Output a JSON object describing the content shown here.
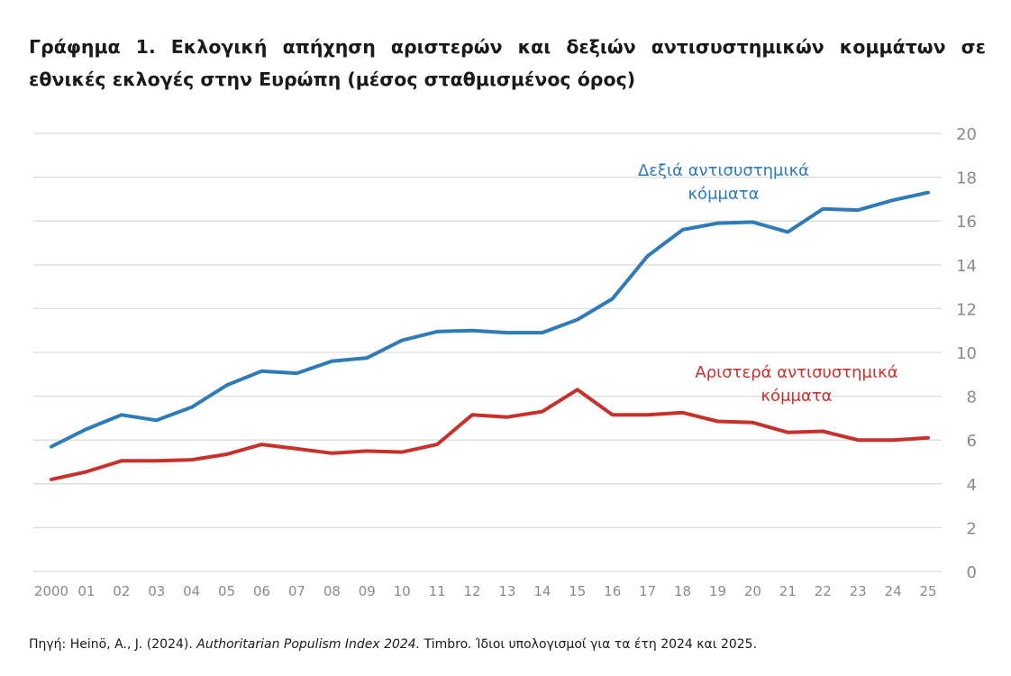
{
  "title": "Γράφημα 1. Εκλογική απήχηση αριστερών και δεξιών αντισυστημικών κομμάτων σε εθνικές εκλογές στην Ευρώπη (μέσος σταθμισμένος όρος)",
  "source": {
    "prefix": "Πηγή: Heinö, A., J. (2024). ",
    "italic": "Authoritarian Populism Index 2024.",
    "suffix": " Timbro. Ίδιοι υπολογισμοί για τα έτη 2024 και 2025."
  },
  "colors": {
    "right": "#2e7bb8",
    "left": "#c8302b",
    "grid": "#dcdcdc",
    "tick": "#8a8a8a"
  },
  "chart_data": {
    "type": "line",
    "categories": [
      "2000",
      "01",
      "02",
      "03",
      "04",
      "05",
      "06",
      "07",
      "08",
      "09",
      "10",
      "11",
      "12",
      "13",
      "14",
      "15",
      "16",
      "17",
      "18",
      "19",
      "20",
      "21",
      "22",
      "23",
      "24",
      "25"
    ],
    "ylim": [
      0,
      20
    ],
    "yticks": [
      0,
      2,
      4,
      6,
      8,
      10,
      12,
      14,
      16,
      18,
      20
    ],
    "y_axis_position": "right",
    "grid": true,
    "series": [
      {
        "name": "Δεξιά αντισυστημικά κόμματα",
        "label_lines": [
          "Δεξιά αντισυστημικά",
          "κόμματα"
        ],
        "color": "#2e7bb8",
        "values": [
          5.7,
          6.5,
          7.15,
          6.9,
          7.5,
          8.5,
          9.15,
          9.05,
          9.6,
          9.75,
          10.55,
          10.95,
          11.0,
          10.9,
          10.9,
          11.5,
          12.45,
          14.4,
          15.6,
          15.9,
          15.95,
          15.5,
          16.55,
          16.5,
          16.95,
          17.3
        ]
      },
      {
        "name": "Αριστερά αντισυστημικά κόμματα",
        "label_lines": [
          "Αριστερά αντισυστημικά",
          "κόμματα"
        ],
        "color": "#c8302b",
        "values": [
          4.2,
          4.55,
          5.05,
          5.05,
          5.1,
          5.35,
          5.8,
          5.6,
          5.4,
          5.5,
          5.45,
          5.8,
          7.15,
          7.05,
          7.3,
          8.3,
          7.15,
          7.15,
          7.25,
          6.85,
          6.8,
          6.35,
          6.4,
          6.0,
          6.0,
          6.1
        ]
      }
    ]
  }
}
